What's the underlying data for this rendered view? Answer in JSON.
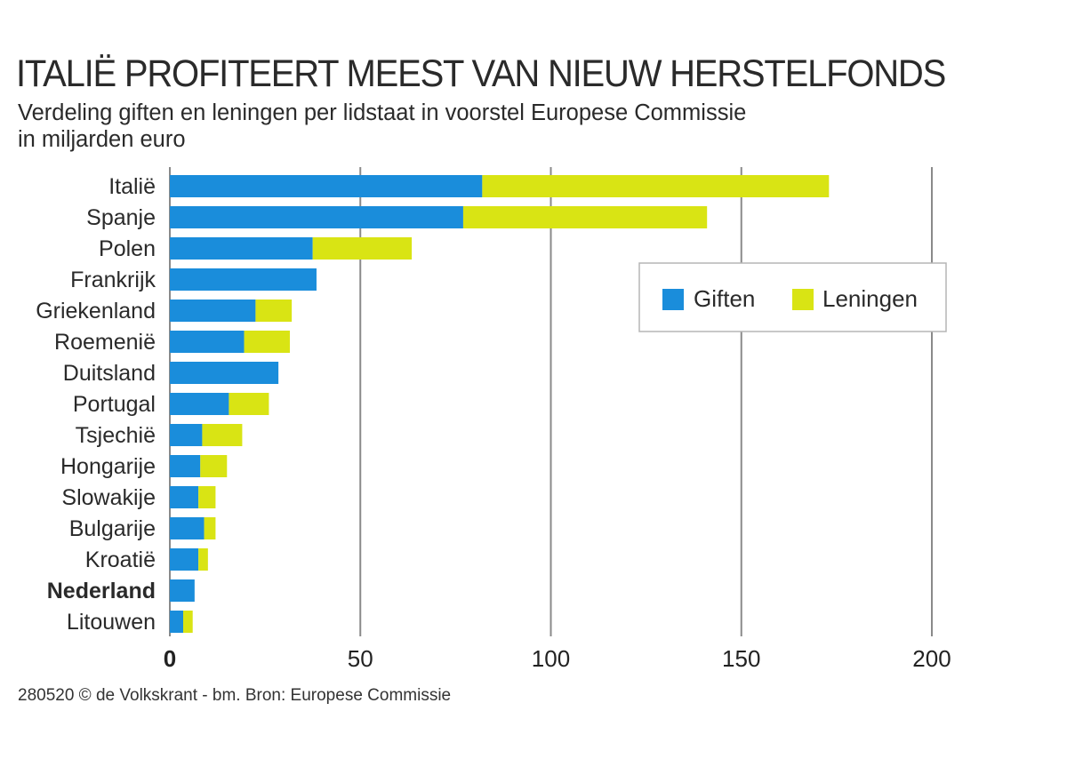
{
  "chart_data": {
    "type": "bar",
    "orientation": "horizontal",
    "stacked": true,
    "title": "ITALIË PROFITEERT MEEST VAN NIEUW HERSTELFONDS",
    "subtitle": "Verdeling giften en leningen per lidstaat in voorstel Europese Commissie",
    "unit_label": "in miljarden euro",
    "categories": [
      "Italië",
      "Spanje",
      "Polen",
      "Frankrijk",
      "Griekenland",
      "Roemenië",
      "Duitsland",
      "Portugal",
      "Tsjechië",
      "Hongarije",
      "Slowakije",
      "Bulgarije",
      "Kroatië",
      "Nederland",
      "Litouwen"
    ],
    "highlight_category": "Nederland",
    "series": [
      {
        "name": "Giften",
        "color": "#1a8ddb",
        "values": [
          82,
          77,
          37.5,
          38.5,
          22.5,
          19.5,
          28.5,
          15.5,
          8.5,
          8,
          7.5,
          9,
          7.5,
          6.5,
          3.5
        ]
      },
      {
        "name": "Leningen",
        "color": "#d9e414",
        "values": [
          91,
          64,
          26,
          0,
          9.5,
          12,
          0,
          10.5,
          10.5,
          7,
          4.5,
          3,
          2.5,
          0,
          2.5
        ]
      }
    ],
    "x_ticks": [
      "0",
      "50",
      "100",
      "150",
      "200"
    ],
    "xlim": [
      0,
      200
    ],
    "grid": true,
    "legend_position": "right"
  },
  "source": "280520 © de Volkskrant - bm. Bron: Europese Commissie"
}
